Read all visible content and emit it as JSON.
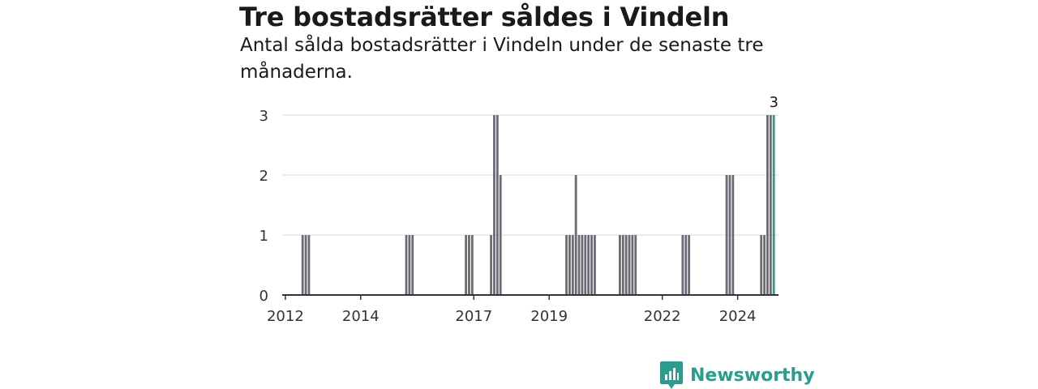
{
  "chart_data": {
    "type": "bar",
    "title": "Tre bostadsrätter såldes i Vindeln",
    "subtitle": "Antal sålda bostadsrätter i Vindeln under de senaste tre månaderna.",
    "xlabel": "",
    "ylabel": "",
    "ylim": [
      0,
      3
    ],
    "yticks": [
      0,
      1,
      2,
      3
    ],
    "x_range": [
      "2011-12",
      "2025-02"
    ],
    "xticks": [
      "2012",
      "2014",
      "2017",
      "2019",
      "2022",
      "2024"
    ],
    "grid": true,
    "bar_color": "#6b6b75",
    "highlight_color": "#2a9d8f",
    "annotation": {
      "x": "2024-12",
      "label": "3"
    },
    "categories": [
      "2012-06",
      "2012-07",
      "2012-08",
      "2015-03",
      "2015-04",
      "2015-05",
      "2016-10",
      "2016-11",
      "2016-12",
      "2017-06",
      "2017-07",
      "2017-08",
      "2017-09",
      "2019-06",
      "2019-07",
      "2019-08",
      "2019-09",
      "2019-10",
      "2019-11",
      "2019-12",
      "2020-01",
      "2020-02",
      "2020-03",
      "2020-11",
      "2020-12",
      "2021-01",
      "2021-02",
      "2021-03",
      "2021-04",
      "2022-07",
      "2022-08",
      "2022-09",
      "2023-09",
      "2023-10",
      "2023-11",
      "2024-08",
      "2024-09",
      "2024-10",
      "2024-11",
      "2024-12"
    ],
    "values": [
      1,
      1,
      1,
      1,
      1,
      1,
      1,
      1,
      1,
      1,
      3,
      3,
      2,
      1,
      1,
      1,
      2,
      1,
      1,
      1,
      1,
      1,
      1,
      1,
      1,
      1,
      1,
      1,
      1,
      1,
      1,
      1,
      2,
      2,
      2,
      1,
      1,
      3,
      3,
      3
    ]
  },
  "brand": {
    "name": "Newsworthy"
  }
}
